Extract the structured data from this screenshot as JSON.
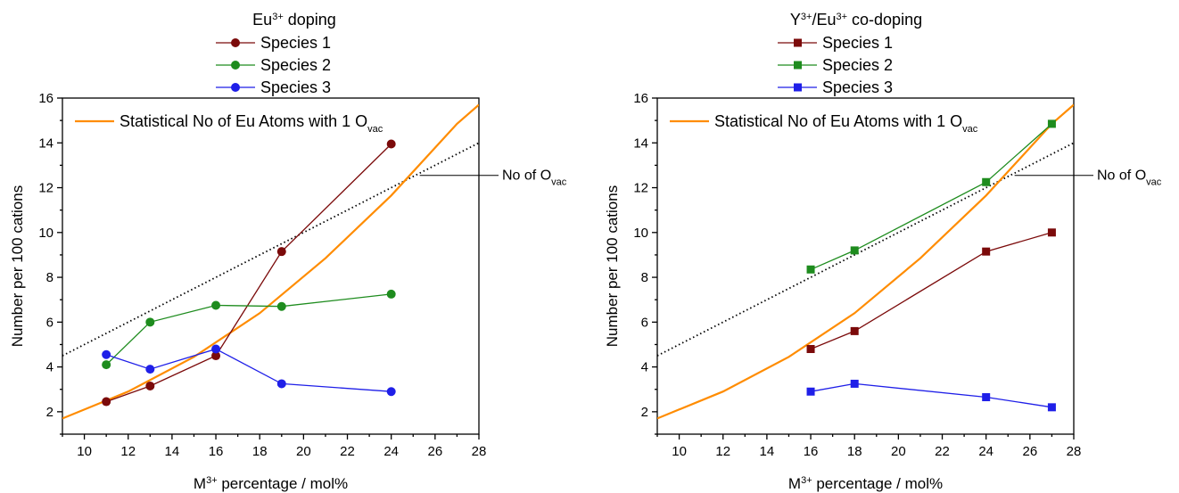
{
  "chart_data": [
    {
      "type": "line",
      "title": "Eu³⁺ doping",
      "title_parts": {
        "pre": "Eu",
        "sup": "3+",
        "post": " doping"
      },
      "xlabel_parts": {
        "pre": "M",
        "sup": "3+",
        "post": " percentage / mol%"
      },
      "ylabel": "Number per 100 cations",
      "xlim": [
        9,
        28
      ],
      "ylim": [
        1,
        16
      ],
      "xticks": [
        "10",
        "12",
        "14",
        "16",
        "18",
        "20",
        "22",
        "24",
        "26",
        "28"
      ],
      "yticks": [
        "2",
        "4",
        "6",
        "8",
        "10",
        "12",
        "14",
        "16"
      ],
      "marker": "circle",
      "series": [
        {
          "name": "Species 1",
          "color": "#7b0a0a",
          "x": [
            11,
            13,
            16,
            19,
            24
          ],
          "y": [
            2.45,
            3.15,
            4.5,
            9.15,
            13.95
          ]
        },
        {
          "name": "Species 2",
          "color": "#1e8c1e",
          "x": [
            11,
            13,
            16,
            19,
            24
          ],
          "y": [
            4.1,
            6.0,
            6.75,
            6.7,
            7.25
          ]
        },
        {
          "name": "Species 3",
          "color": "#1f1fe8",
          "x": [
            11,
            13,
            16,
            19,
            24
          ],
          "y": [
            4.55,
            3.9,
            4.8,
            3.25,
            2.9
          ]
        }
      ],
      "curve": {
        "label_pre": "Statistical No of Eu Atoms with 1 O",
        "label_sub": "vac",
        "color": "#ff8c00",
        "x": [
          9,
          12,
          15,
          18,
          21,
          24,
          27,
          28
        ],
        "y": [
          1.7,
          2.9,
          4.45,
          6.4,
          8.85,
          11.65,
          14.85,
          15.7
        ]
      },
      "ref_line": {
        "label_pre": "No of O",
        "label_sub": "vac",
        "x": [
          9,
          28
        ],
        "y": [
          4.5,
          14.0
        ]
      }
    },
    {
      "type": "line",
      "title": "Y³⁺/Eu³⁺ co-doping",
      "title_parts": {
        "pre": "Y",
        "sup": "3+",
        "mid": "/Eu",
        "sup2": "3+",
        "post": " co-doping"
      },
      "xlabel_parts": {
        "pre": "M",
        "sup": "3+",
        "post": " percentage / mol%"
      },
      "ylabel": "Number per 100 cations",
      "xlim": [
        9,
        28
      ],
      "ylim": [
        1,
        16
      ],
      "xticks": [
        "10",
        "12",
        "14",
        "16",
        "18",
        "20",
        "22",
        "24",
        "26",
        "28"
      ],
      "yticks": [
        "2",
        "4",
        "6",
        "8",
        "10",
        "12",
        "14",
        "16"
      ],
      "marker": "square",
      "series": [
        {
          "name": "Species 1",
          "color": "#7b0a0a",
          "x": [
            16,
            18,
            24,
            27
          ],
          "y": [
            4.8,
            5.6,
            9.15,
            10.0
          ]
        },
        {
          "name": "Species 2",
          "color": "#1e8c1e",
          "x": [
            16,
            18,
            24,
            27
          ],
          "y": [
            8.35,
            9.2,
            12.25,
            14.85
          ]
        },
        {
          "name": "Species 3",
          "color": "#1f1fe8",
          "x": [
            16,
            18,
            24,
            27
          ],
          "y": [
            2.9,
            3.25,
            2.65,
            2.2
          ]
        }
      ],
      "curve": {
        "label_pre": "Statistical No of Eu Atoms with 1 O",
        "label_sub": "vac",
        "color": "#ff8c00",
        "x": [
          9,
          12,
          15,
          18,
          21,
          24,
          27,
          28
        ],
        "y": [
          1.7,
          2.9,
          4.45,
          6.4,
          8.85,
          11.65,
          14.85,
          15.7
        ]
      },
      "ref_line": {
        "label_pre": "No of O",
        "label_sub": "vac",
        "x": [
          9,
          28
        ],
        "y": [
          4.5,
          14.0
        ]
      }
    }
  ]
}
